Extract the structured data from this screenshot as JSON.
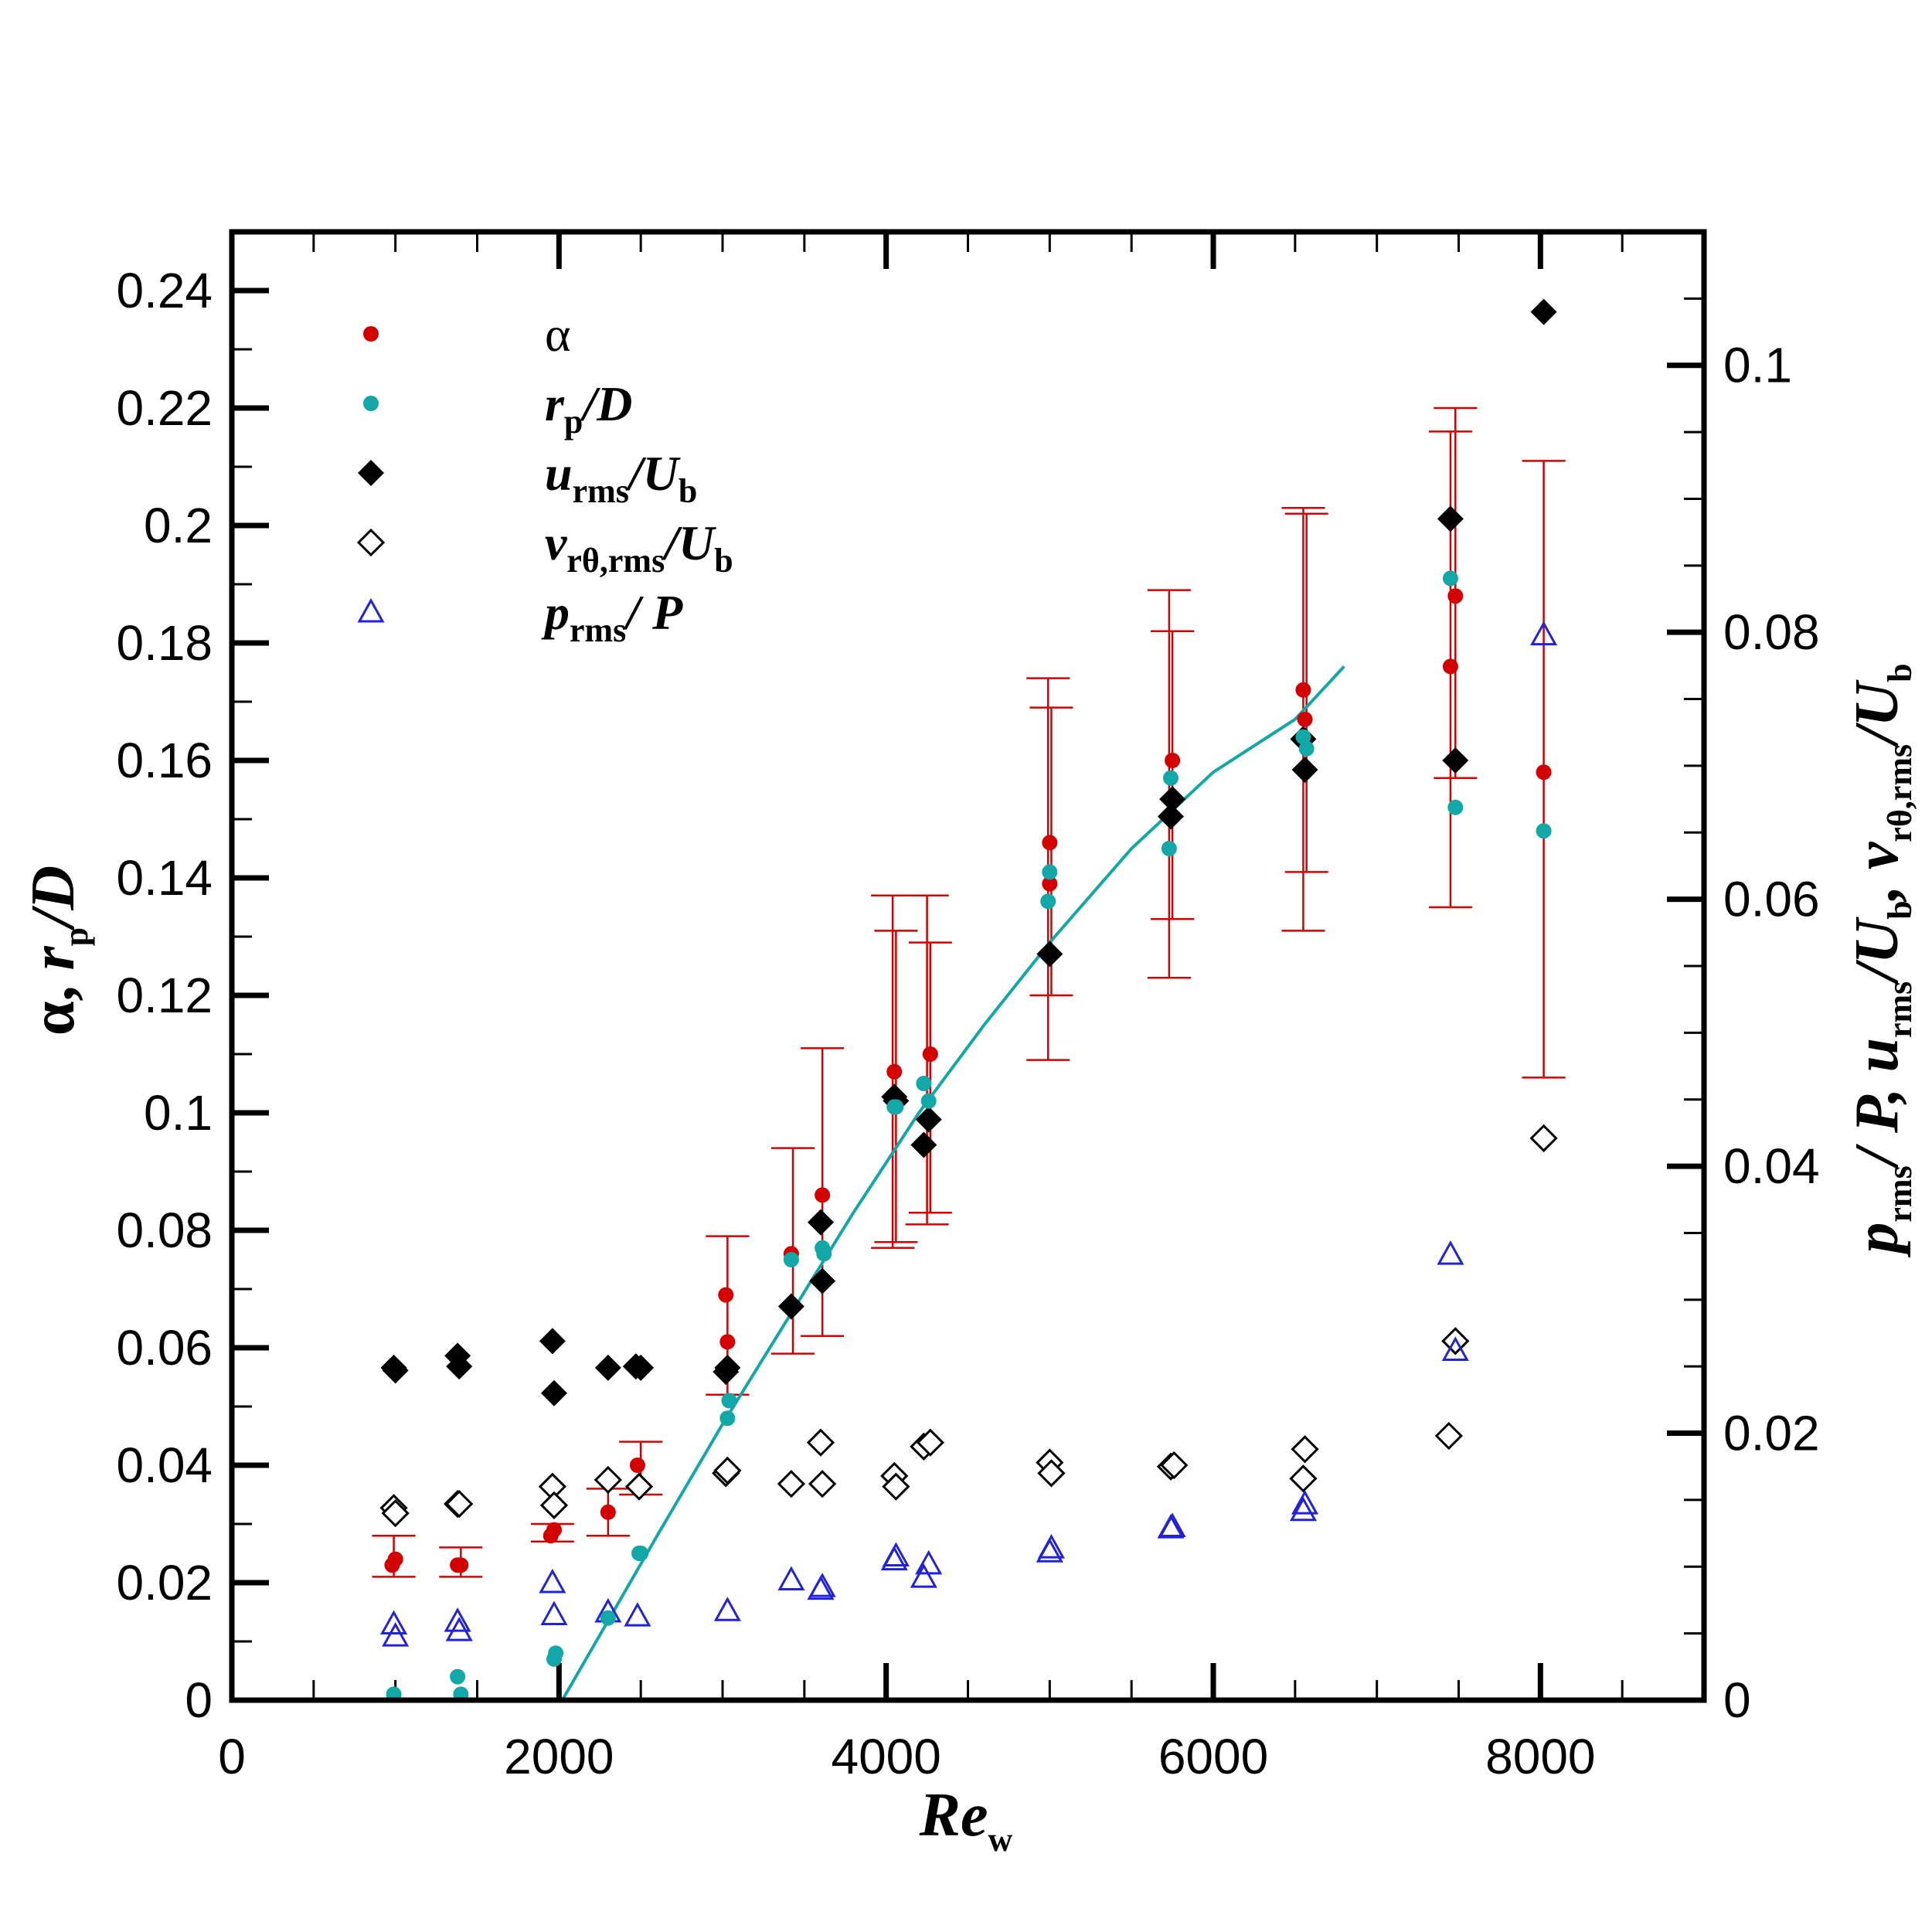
{
  "chart_data": {
    "type": "scatter",
    "x_axis": {
      "label": "Re",
      "label_sub": "w",
      "range": [
        0,
        9000
      ],
      "ticks": [
        0,
        2000,
        4000,
        6000,
        8000
      ],
      "tick_labels": [
        "0",
        "2000",
        "4000",
        "6000",
        "8000"
      ]
    },
    "y_axis_left": {
      "label": "α, r_p/D",
      "range": [
        0,
        0.25
      ],
      "ticks": [
        0,
        0.02,
        0.04,
        0.06,
        0.08,
        0.1,
        0.12,
        0.14,
        0.16,
        0.18,
        0.2,
        0.22,
        0.24
      ],
      "tick_labels": [
        "0",
        "0.02",
        "0.04",
        "0.06",
        "0.08",
        "0.1",
        "0.12",
        "0.14",
        "0.16",
        "0.18",
        "0.2",
        "0.22",
        "0.24"
      ]
    },
    "y_axis_right": {
      "label": "p_rms/P, u_rms/U_b, v_rθ,rms/U_b",
      "range": [
        0,
        0.11
      ],
      "ticks": [
        0,
        0.02,
        0.04,
        0.06,
        0.08,
        0.1
      ],
      "tick_labels": [
        "0",
        "0.02",
        "0.04",
        "0.06",
        "0.08",
        "0.1"
      ]
    },
    "series": [
      {
        "name": "α",
        "axis": "left",
        "marker": "circle",
        "color": "#d40000",
        "points": [
          [
            980,
            0.023
          ],
          [
            1000,
            0.024
          ],
          [
            1380,
            0.023
          ],
          [
            1400,
            0.023
          ],
          [
            1950,
            0.028
          ],
          [
            1970,
            0.029
          ],
          [
            2300,
            0.032
          ],
          [
            2480,
            0.04
          ],
          [
            3020,
            0.069
          ],
          [
            3030,
            0.061
          ],
          [
            3420,
            0.076
          ],
          [
            3610,
            0.086
          ],
          [
            4050,
            0.107
          ],
          [
            4270,
            0.11
          ],
          [
            5000,
            0.146
          ],
          [
            5000,
            0.139
          ],
          [
            5750,
            0.16
          ],
          [
            6550,
            0.172
          ],
          [
            6560,
            0.167
          ],
          [
            7450,
            0.176
          ],
          [
            7480,
            0.188
          ],
          [
            8020,
            0.158
          ]
        ]
      },
      {
        "name": "r_p/D",
        "axis": "left",
        "marker": "circle",
        "color": "#12a8a8",
        "points": [
          [
            990,
            0.001
          ],
          [
            1380,
            0.004
          ],
          [
            1400,
            0.001
          ],
          [
            1970,
            0.007
          ],
          [
            1980,
            0.008
          ],
          [
            2300,
            0.014
          ],
          [
            2490,
            0.025
          ],
          [
            2500,
            0.025
          ],
          [
            3030,
            0.048
          ],
          [
            3040,
            0.051
          ],
          [
            3420,
            0.075
          ],
          [
            3610,
            0.077
          ],
          [
            3620,
            0.076
          ],
          [
            4050,
            0.101
          ],
          [
            4060,
            0.101
          ],
          [
            4230,
            0.105
          ],
          [
            4260,
            0.102
          ],
          [
            5000,
            0.141
          ],
          [
            4990,
            0.136
          ],
          [
            5740,
            0.157
          ],
          [
            5730,
            0.145
          ],
          [
            6550,
            0.164
          ],
          [
            6570,
            0.162
          ],
          [
            7450,
            0.191
          ],
          [
            7480,
            0.152
          ],
          [
            8020,
            0.148
          ]
        ]
      },
      {
        "name": "u_rms/U_b",
        "axis": "right",
        "marker": "diamond-filled",
        "color": "#000000",
        "points": [
          [
            990,
            0.0249
          ],
          [
            1000,
            0.0247
          ],
          [
            1380,
            0.0258
          ],
          [
            1390,
            0.025
          ],
          [
            1960,
            0.0269
          ],
          [
            1970,
            0.023
          ],
          [
            2300,
            0.0249
          ],
          [
            2470,
            0.025
          ],
          [
            2500,
            0.0249
          ],
          [
            3020,
            0.0246
          ],
          [
            3030,
            0.0249
          ],
          [
            3420,
            0.0295
          ],
          [
            3600,
            0.0358
          ],
          [
            3610,
            0.0314
          ],
          [
            4050,
            0.0452
          ],
          [
            4060,
            0.0449
          ],
          [
            4230,
            0.0416
          ],
          [
            4260,
            0.0435
          ],
          [
            5000,
            0.0559
          ],
          [
            5740,
            0.0662
          ],
          [
            5750,
            0.0675
          ],
          [
            6550,
            0.072
          ],
          [
            6560,
            0.0697
          ],
          [
            7450,
            0.0885
          ],
          [
            7480,
            0.0704
          ],
          [
            8020,
            0.104
          ]
        ]
      },
      {
        "name": "v_rθ,rms/U_b",
        "axis": "right",
        "marker": "diamond-open",
        "color": "#000000",
        "points": [
          [
            990,
            0.0144
          ],
          [
            1000,
            0.014
          ],
          [
            1380,
            0.0147
          ],
          [
            1390,
            0.0147
          ],
          [
            1960,
            0.016
          ],
          [
            1970,
            0.0146
          ],
          [
            2300,
            0.0165
          ],
          [
            2490,
            0.016
          ],
          [
            3020,
            0.017
          ],
          [
            3030,
            0.0172
          ],
          [
            3420,
            0.0162
          ],
          [
            3600,
            0.0193
          ],
          [
            3610,
            0.0162
          ],
          [
            4050,
            0.0168
          ],
          [
            4060,
            0.016
          ],
          [
            4230,
            0.019
          ],
          [
            4270,
            0.0193
          ],
          [
            5000,
            0.0178
          ],
          [
            5010,
            0.017
          ],
          [
            5740,
            0.0175
          ],
          [
            5760,
            0.0176
          ],
          [
            6550,
            0.0166
          ],
          [
            6560,
            0.0188
          ],
          [
            7440,
            0.0198
          ],
          [
            7480,
            0.0269
          ],
          [
            8020,
            0.0421
          ]
        ]
      },
      {
        "name": "p_rms/P",
        "axis": "right",
        "marker": "triangle-open",
        "color": "#2222dd",
        "points": [
          [
            990,
            0.0057
          ],
          [
            1000,
            0.0048
          ],
          [
            1380,
            0.0059
          ],
          [
            1390,
            0.0052
          ],
          [
            1960,
            0.0088
          ],
          [
            1970,
            0.0064
          ],
          [
            2300,
            0.0066
          ],
          [
            2480,
            0.0063
          ],
          [
            3030,
            0.0067
          ],
          [
            3420,
            0.009
          ],
          [
            3600,
            0.0083
          ],
          [
            3610,
            0.0085
          ],
          [
            4050,
            0.0105
          ],
          [
            4060,
            0.0108
          ],
          [
            4230,
            0.0092
          ],
          [
            4260,
            0.0102
          ],
          [
            5000,
            0.0111
          ],
          [
            5010,
            0.0114
          ],
          [
            5740,
            0.0129
          ],
          [
            5750,
            0.013
          ],
          [
            6550,
            0.0142
          ],
          [
            6560,
            0.0147
          ],
          [
            7450,
            0.0334
          ],
          [
            7480,
            0.0262
          ],
          [
            8020,
            0.0798
          ]
        ]
      }
    ],
    "error_bars": {
      "series": "α",
      "color": "#d40000",
      "bars": [
        [
          990,
          0.021,
          0.028
        ],
        [
          1400,
          0.021,
          0.026
        ],
        [
          1960,
          0.027,
          0.03
        ],
        [
          2300,
          0.028,
          0.036
        ],
        [
          2500,
          0.035,
          0.044
        ],
        [
          3030,
          0.052,
          0.079
        ],
        [
          3430,
          0.059,
          0.094
        ],
        [
          3610,
          0.062,
          0.111
        ],
        [
          4040,
          0.077,
          0.137
        ],
        [
          4060,
          0.078,
          0.131
        ],
        [
          4250,
          0.081,
          0.137
        ],
        [
          4270,
          0.083,
          0.129
        ],
        [
          4990,
          0.109,
          0.174
        ],
        [
          5010,
          0.12,
          0.169
        ],
        [
          5730,
          0.123,
          0.189
        ],
        [
          5750,
          0.133,
          0.182
        ],
        [
          6550,
          0.131,
          0.203
        ],
        [
          6570,
          0.141,
          0.202
        ],
        [
          7450,
          0.135,
          0.216
        ],
        [
          7480,
          0.157,
          0.22
        ],
        [
          8020,
          0.106,
          0.211
        ]
      ]
    },
    "fit_curve": {
      "name": "fit",
      "color": "#12a8a8",
      "axis": "left",
      "points": [
        [
          2020,
          0.0
        ],
        [
          2300,
          0.0135
        ],
        [
          2600,
          0.028
        ],
        [
          3000,
          0.047
        ],
        [
          3400,
          0.065
        ],
        [
          3800,
          0.083
        ],
        [
          4200,
          0.1
        ],
        [
          4600,
          0.115
        ],
        [
          5000,
          0.129
        ],
        [
          5500,
          0.145
        ],
        [
          6000,
          0.158
        ],
        [
          6500,
          0.167
        ],
        [
          6800,
          0.176
        ]
      ]
    },
    "legend": {
      "placement": "top-left",
      "entries": [
        {
          "series": "α",
          "label": "α"
        },
        {
          "series": "r_p/D",
          "label": "r",
          "sub": "p",
          "suffix": "/D"
        },
        {
          "series": "u_rms/U_b",
          "label": "u",
          "sub": "rms",
          "suffix": "/U",
          "sub2": "b"
        },
        {
          "series": "v_rθ,rms/U_b",
          "label": "v",
          "sub": "rθ,rms",
          "suffix": "/U",
          "sub2": "b"
        },
        {
          "series": "p_rms/P",
          "label": "p",
          "sub": "rms",
          "suffix": "/ P"
        }
      ]
    }
  }
}
